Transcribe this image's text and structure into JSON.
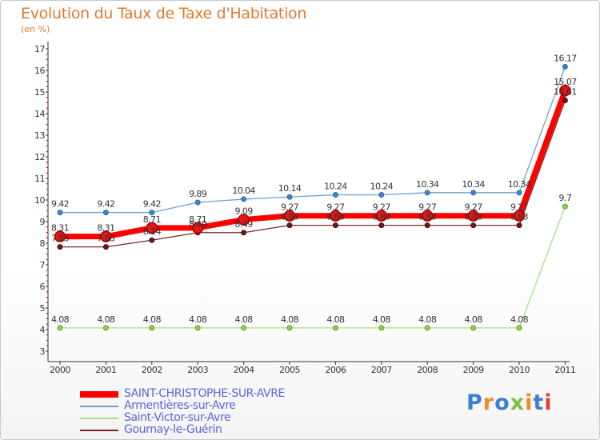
{
  "chart_data": {
    "type": "line",
    "title": "Evolution du Taux de Taxe d'Habitation",
    "subtitle": "(en %)",
    "x": [
      "2000",
      "2001",
      "2002",
      "2003",
      "2004",
      "2005",
      "2006",
      "2007",
      "2008",
      "2009",
      "2010",
      "2011"
    ],
    "y_ticks": [
      "3",
      "4",
      "5",
      "6",
      "7",
      "8",
      "9",
      "10",
      "11",
      "12",
      "13",
      "14",
      "15",
      "16",
      "17"
    ],
    "ylim": [
      3,
      17
    ],
    "grid": false,
    "legend_position": "bottom-left",
    "series": [
      {
        "name": "SAINT-CHRISTOPHE-SUR-AVRE",
        "color": "#ff0000",
        "values": [
          8.31,
          8.31,
          8.71,
          8.71,
          9.09,
          9.27,
          9.27,
          9.27,
          9.27,
          9.27,
          9.27,
          15.07
        ],
        "labels": [
          "8.31",
          "8.31",
          "8.71",
          "8.71",
          "9.09",
          "9.27",
          "9.27",
          "9.27",
          "9.27",
          "9.27",
          "9.27",
          "15.07"
        ]
      },
      {
        "name": "Armentières-sur-Avre",
        "color": "#6fa1d0",
        "values": [
          9.42,
          9.42,
          9.42,
          9.89,
          10.04,
          10.14,
          10.24,
          10.24,
          10.34,
          10.34,
          10.34,
          16.17
        ],
        "labels": [
          "9.42",
          "9.42",
          "9.42",
          "9.89",
          "10.04",
          "10.14",
          "10.24",
          "10.24",
          "10.34",
          "10.34",
          "10.34",
          "16.17"
        ]
      },
      {
        "name": "Saint-Victor-sur-Avre",
        "color": "#a8e07a",
        "values": [
          4.08,
          4.08,
          4.08,
          4.08,
          4.08,
          4.08,
          4.08,
          4.08,
          4.08,
          4.08,
          4.08,
          9.7
        ],
        "labels": [
          "4.08",
          "4.08",
          "4.08",
          "4.08",
          "4.08",
          "4.08",
          "4.08",
          "4.08",
          "4.08",
          "4.08",
          "4.08",
          "9.7"
        ]
      },
      {
        "name": "Gournay-le-Guérin",
        "color": "#7a2a2a",
        "values": [
          7.83,
          7.83,
          8.14,
          8.49,
          8.49,
          8.83,
          8.83,
          8.83,
          8.83,
          8.83,
          8.83,
          14.61
        ],
        "labels": [
          "7.83",
          "7.83",
          "8.14",
          "8.49",
          "8.49",
          "8.83",
          "8.83",
          "8.83",
          "8.83",
          "8.83",
          "8.83",
          "14.61"
        ]
      }
    ]
  },
  "logo": {
    "text": "Proxiti"
  }
}
